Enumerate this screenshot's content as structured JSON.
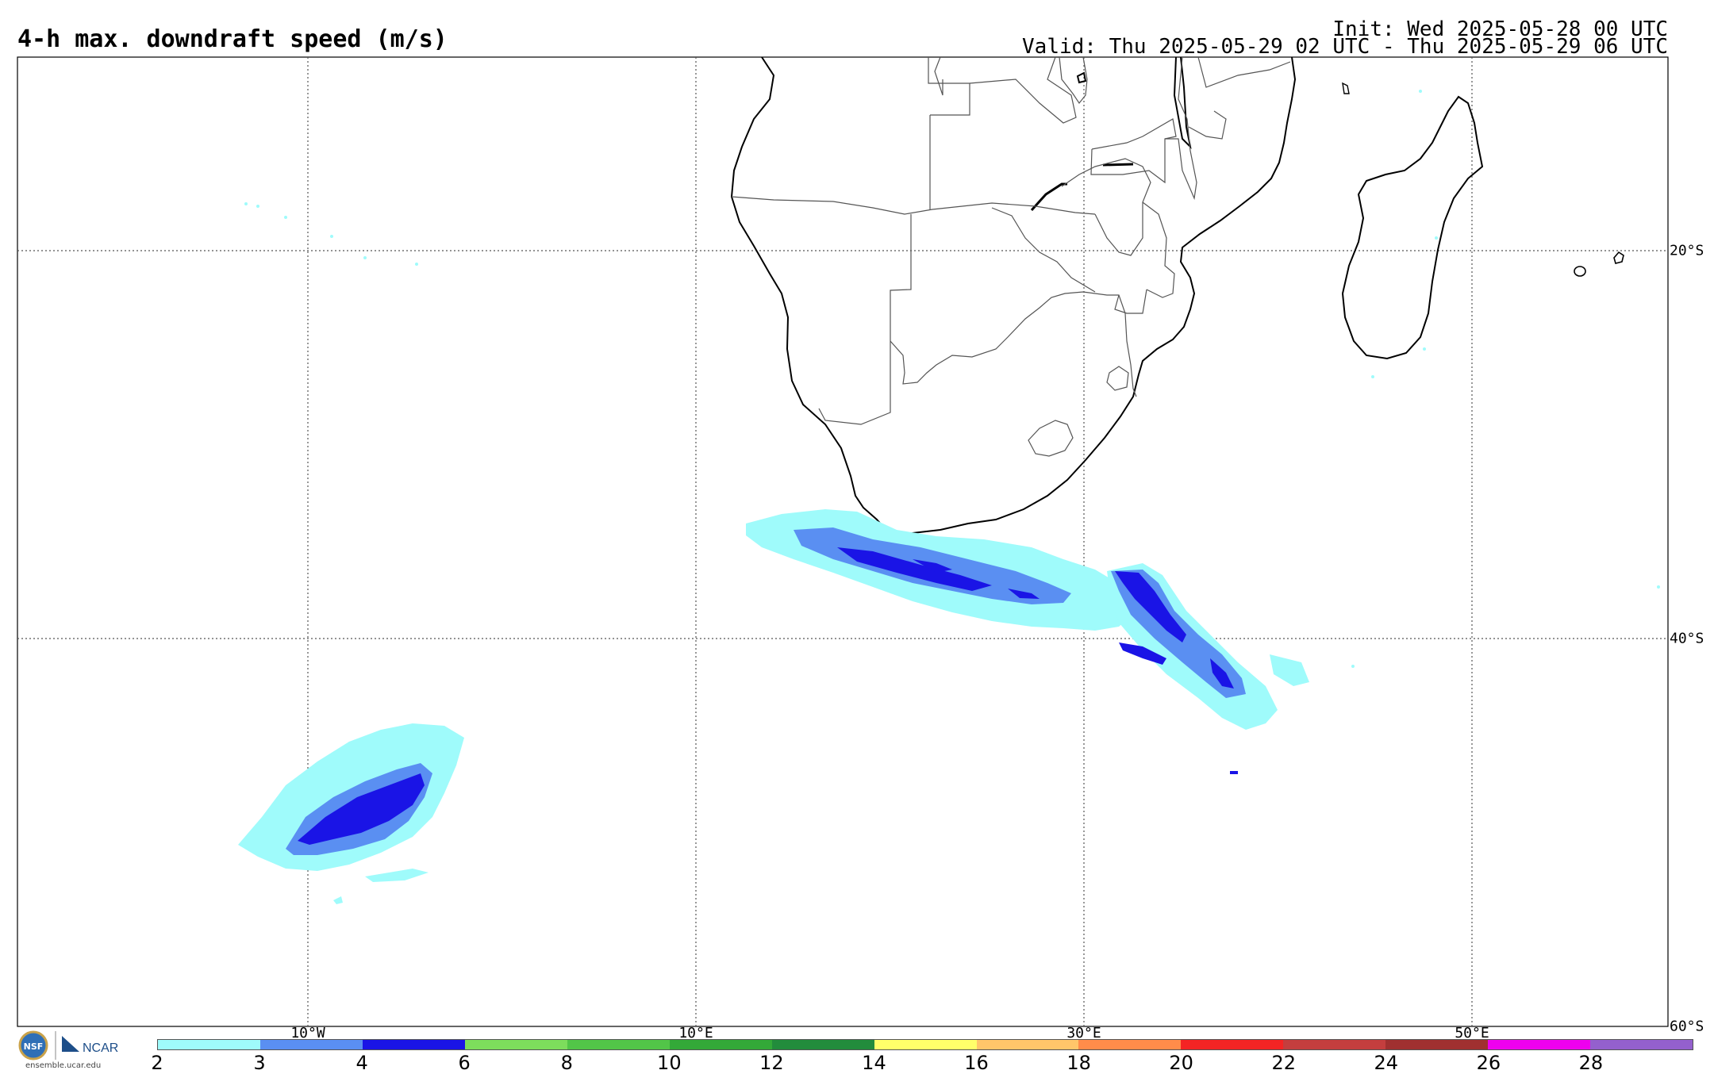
{
  "header": {
    "title": "4-h max. downdraft speed (m/s)",
    "init": "Init: Wed 2025-05-28 00 UTC",
    "valid": "Valid: Thu 2025-05-29 02 UTC - Thu 2025-05-29 06 UTC"
  },
  "map": {
    "lon_labels": [
      "10°W",
      "10°E",
      "30°E",
      "50°E"
    ],
    "lat_labels": [
      "20°S",
      "40°S",
      "60°S"
    ],
    "gridlines": "dotted",
    "field_palette": {
      "cyan": "#9ffbfb",
      "mid_blue": "#5a8ff2",
      "deep_blue": "#1a14e6"
    }
  },
  "colorbar": {
    "ticks": [
      "2",
      "3",
      "4",
      "6",
      "8",
      "10",
      "12",
      "14",
      "16",
      "18",
      "20",
      "22",
      "24",
      "26",
      "28"
    ],
    "colors": [
      "#9ffbfb",
      "#5a8ff2",
      "#1a14e6",
      "#7ddd5c",
      "#52c548",
      "#33a938",
      "#228c3c",
      "#ffff6a",
      "#ffc66a",
      "#ff8c4a",
      "#f42424",
      "#c43e3e",
      "#a03030",
      "#ee00ee",
      "#9460cd"
    ]
  },
  "logo": {
    "nsf_text": "NSF",
    "ncar_text": "NCAR",
    "credit": "ensemble.ucar.edu"
  }
}
